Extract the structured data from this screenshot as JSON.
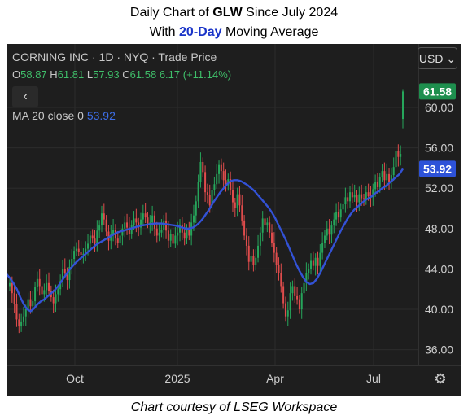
{
  "title": {
    "line1_prefix": "Daily Chart of ",
    "ticker": "GLW",
    "line1_suffix": " Since July 2024",
    "line2_prefix": "With ",
    "ma_days": "20-Day",
    "line2_suffix": " Moving Average"
  },
  "header": {
    "instrument": "CORNING INC · 1D · NYQ · Trade Price",
    "o_key": "O",
    "o_val": "58.87",
    "h_key": "H",
    "h_val": "61.81",
    "l_key": "L",
    "l_val": "57.93",
    "c_key": "C",
    "c_val": "61.58",
    "change": "6.17 (+11.14%)",
    "back_icon": "‹",
    "ma_label": "MA 20 close 0",
    "ma_value": "53.92"
  },
  "toolbar": {
    "currency": "USD",
    "settings_icon": "gear-icon"
  },
  "footer": "Chart courtesy of LSEG Workspace",
  "colors": {
    "up": "#26a65b",
    "down": "#e04c4c",
    "ma": "#3352d6",
    "background": "#1e1e1e"
  },
  "chart_data": {
    "type": "candlestick",
    "ylim": [
      35,
      65
    ],
    "y_ticks": [
      "36.00",
      "40.00",
      "44.00",
      "48.00",
      "52.00",
      "56.00",
      "60.00"
    ],
    "x_ticks": [
      "Oct",
      "2025",
      "Apr",
      "Jul"
    ],
    "price_badge": "61.58",
    "ma_badge": "53.92",
    "close": [
      42.6,
      41.6,
      40.5,
      39.0,
      38.3,
      38.8,
      39.3,
      40.0,
      41.0,
      40.3,
      40.8,
      42.2,
      43.0,
      42.3,
      41.5,
      41.9,
      42.6,
      41.8,
      41.2,
      40.6,
      41.5,
      42.0,
      42.8,
      44.0,
      43.6,
      42.9,
      44.2,
      45.0,
      45.8,
      46.0,
      45.7,
      45.4,
      45.5,
      46.0,
      46.5,
      47.3,
      47.0,
      46.6,
      47.8,
      48.3,
      49.5,
      48.9,
      47.7,
      46.8,
      47.5,
      47.9,
      47.0,
      46.6,
      47.3,
      48.0,
      48.6,
      48.1,
      47.5,
      48.3,
      49.0,
      48.6,
      48.1,
      48.9,
      49.5,
      49.1,
      48.5,
      48.6,
      49.3,
      48.0,
      47.3,
      47.6,
      47.9,
      48.8,
      47.8,
      46.8,
      47.5,
      46.5,
      47.3,
      47.6,
      48.4,
      47.6,
      47.0,
      48.0,
      47.3,
      48.6,
      49.3,
      50.7,
      52.6,
      54.6,
      53.6,
      51.6,
      51.3,
      50.3,
      51.8,
      52.4,
      53.4,
      54.3,
      53.7,
      52.8,
      52.3,
      52.9,
      51.8,
      50.6,
      50.0,
      51.4,
      50.3,
      48.8,
      47.3,
      46.3,
      44.7,
      45.3,
      44.4,
      45.1,
      46.3,
      47.6,
      49.0,
      48.3,
      48.6,
      47.6,
      46.6,
      45.6,
      44.4,
      43.6,
      42.3,
      40.6,
      39.3,
      39.9,
      41.6,
      42.3,
      41.3,
      41.0,
      40.0,
      41.6,
      42.6,
      43.6,
      44.0,
      44.8,
      44.3,
      45.1,
      44.3,
      45.6,
      46.6,
      47.3,
      48.0,
      47.4,
      48.3,
      48.9,
      49.6,
      49.1,
      49.9,
      50.4,
      51.1,
      50.7,
      51.6,
      51.1,
      51.3,
      50.6,
      51.4,
      51.0,
      50.9,
      51.6,
      51.2,
      51.1,
      51.9,
      52.6,
      52.1,
      53.1,
      53.7,
      52.8,
      53.4,
      52.6,
      53.3,
      54.1,
      55.7,
      55.1,
      55.4,
      61.58
    ],
    "ma20": [
      43.5,
      43.1,
      42.6,
      42.0,
      41.2,
      40.5,
      40.0,
      39.8,
      40.1,
      40.5,
      40.8,
      41.0,
      41.3,
      41.6,
      41.9,
      42.3,
      42.8,
      43.3,
      43.8,
      44.2,
      44.6,
      44.9,
      45.2,
      45.5,
      45.8,
      46.1,
      46.4,
      46.6,
      46.8,
      47.0,
      47.2,
      47.4,
      47.6,
      47.7,
      47.8,
      47.9,
      48.0,
      48.1,
      48.2,
      48.3,
      48.35,
      48.4,
      48.45,
      48.5,
      48.5,
      48.5,
      48.45,
      48.4,
      48.35,
      48.3,
      48.2,
      48.1,
      48.0,
      48.0,
      48.1,
      48.3,
      48.6,
      49.0,
      49.5,
      50.0,
      50.6,
      51.1,
      51.6,
      52.0,
      52.4,
      52.7,
      52.8,
      52.8,
      52.7,
      52.5,
      52.3,
      52.0,
      51.7,
      51.3,
      50.9,
      50.5,
      50.1,
      49.6,
      49.0,
      48.3,
      47.6,
      46.9,
      46.1,
      45.3,
      44.5,
      43.8,
      43.2,
      42.7,
      42.5,
      42.6,
      43.0,
      43.6,
      44.3,
      45.0,
      45.7,
      46.4,
      47.1,
      47.8,
      48.4,
      49.0,
      49.5,
      49.9,
      50.2,
      50.5,
      50.8,
      51.0,
      51.2,
      51.5,
      51.7,
      52.0,
      52.2,
      52.5,
      52.8,
      53.1,
      53.4,
      53.92
    ]
  }
}
